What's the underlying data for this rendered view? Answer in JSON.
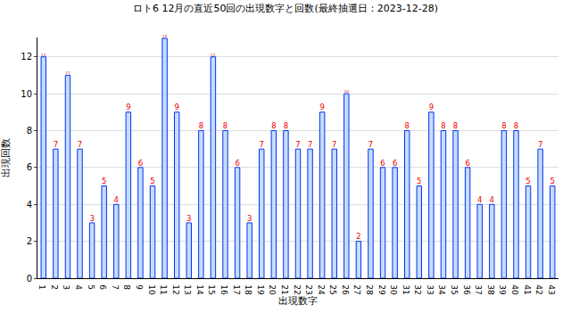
{
  "chart_data": {
    "type": "bar",
    "title": "ロト6 12月の直近50回の出現数字と回数(最終抽選日：2023-12-28)",
    "x_label": "出現数字",
    "y_label": "出現回数",
    "categories": [
      "1",
      "2",
      "3",
      "4",
      "5",
      "6",
      "7",
      "8",
      "9",
      "10",
      "11",
      "12",
      "13",
      "14",
      "15",
      "16",
      "17",
      "18",
      "19",
      "20",
      "21",
      "22",
      "23",
      "24",
      "25",
      "26",
      "27",
      "28",
      "29",
      "30",
      "31",
      "32",
      "33",
      "34",
      "35",
      "36",
      "37",
      "38",
      "39",
      "40",
      "41",
      "42",
      "43"
    ],
    "values": [
      12,
      7,
      11,
      7,
      3,
      5,
      4,
      9,
      6,
      5,
      13,
      9,
      3,
      8,
      12,
      8,
      6,
      3,
      7,
      8,
      8,
      7,
      7,
      9,
      7,
      10,
      2,
      7,
      6,
      6,
      8,
      5,
      9,
      8,
      8,
      6,
      4,
      4,
      8,
      8,
      5,
      7,
      5
    ],
    "color": "#c6dcff",
    "ylim": [
      0,
      13.05
    ],
    "yticks": [
      0,
      2,
      4,
      6,
      8,
      10,
      12
    ],
    "grid": true,
    "data_labels": true
  }
}
